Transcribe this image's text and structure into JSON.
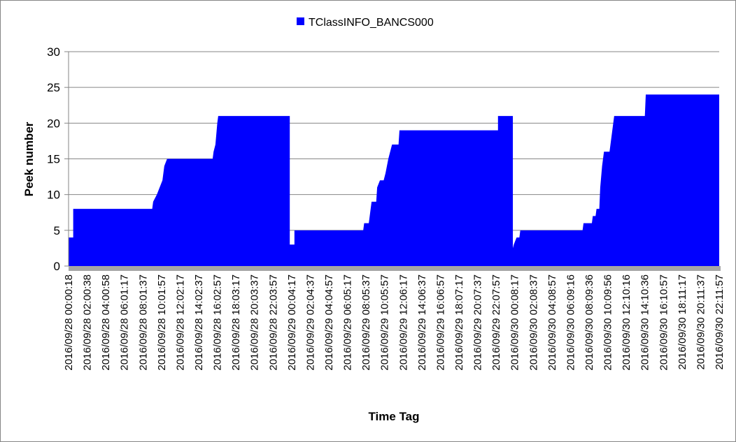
{
  "chart_data": {
    "type": "area",
    "title": "",
    "xlabel": "Time Tag",
    "ylabel": "Peek number",
    "ylim": [
      0,
      30
    ],
    "yticks": [
      0,
      5,
      10,
      15,
      20,
      25,
      30
    ],
    "legend_position": "top-center",
    "grid": "horizontal",
    "colors": {
      "series": "#0000FF",
      "floor": "#A6A6A6",
      "grid": "#868686"
    },
    "x_tick_labels": [
      "2016/09/28 00:00:18",
      "2016/09/28 02:00:38",
      "2016/09/28 04:00:58",
      "2016/09/28 06:01:17",
      "2016/09/28 08:01:37",
      "2016/09/28 10:01:57",
      "2016/09/28 12:02:17",
      "2016/09/28 14:02:37",
      "2016/09/28 16:02:57",
      "2016/09/28 18:03:17",
      "2016/09/28 20:03:37",
      "2016/09/28 22:03:57",
      "2016/09/29 00:04:17",
      "2016/09/29 02:04:37",
      "2016/09/29 04:04:57",
      "2016/09/29 06:05:17",
      "2016/09/29 08:05:37",
      "2016/09/29 10:05:57",
      "2016/09/29 12:06:17",
      "2016/09/29 14:06:37",
      "2016/09/29 16:06:57",
      "2016/09/29 18:07:17",
      "2016/09/29 20:07:37",
      "2016/09/29 22:07:57",
      "2016/09/30 00:08:17",
      "2016/09/30 02:08:37",
      "2016/09/30 04:08:57",
      "2016/09/30 06:09:16",
      "2016/09/30 08:09:36",
      "2016/09/30 10:09:56",
      "2016/09/30 12:10:16",
      "2016/09/30 14:10:36",
      "2016/09/30 16:10:57",
      "2016/09/30 18:11:17",
      "2016/09/30 20:11:37",
      "2016/09/30 22:11:57"
    ],
    "series": [
      {
        "name": "TClassINFO_BANCS000",
        "points": [
          [
            0.0,
            0
          ],
          [
            0.0,
            4
          ],
          [
            0.25,
            4
          ],
          [
            0.25,
            8
          ],
          [
            4.5,
            8
          ],
          [
            4.55,
            9
          ],
          [
            4.75,
            10
          ],
          [
            4.9,
            11
          ],
          [
            5.05,
            12
          ],
          [
            5.15,
            14
          ],
          [
            5.3,
            15
          ],
          [
            7.75,
            15
          ],
          [
            7.8,
            16
          ],
          [
            7.9,
            17
          ],
          [
            8.0,
            20
          ],
          [
            8.05,
            21
          ],
          [
            11.9,
            21
          ],
          [
            11.9,
            3
          ],
          [
            12.15,
            3
          ],
          [
            12.15,
            5
          ],
          [
            15.85,
            5
          ],
          [
            15.9,
            6
          ],
          [
            16.15,
            6
          ],
          [
            16.2,
            7
          ],
          [
            16.3,
            9
          ],
          [
            16.55,
            9
          ],
          [
            16.6,
            11
          ],
          [
            16.75,
            12
          ],
          [
            16.95,
            12
          ],
          [
            17.05,
            13
          ],
          [
            17.2,
            15
          ],
          [
            17.4,
            17
          ],
          [
            17.75,
            17
          ],
          [
            17.8,
            19
          ],
          [
            23.1,
            19
          ],
          [
            23.1,
            21
          ],
          [
            23.9,
            21
          ],
          [
            23.9,
            2.5
          ],
          [
            23.95,
            3
          ],
          [
            24.1,
            4
          ],
          [
            24.25,
            4
          ],
          [
            24.3,
            5
          ],
          [
            27.65,
            5
          ],
          [
            27.7,
            6
          ],
          [
            28.15,
            6
          ],
          [
            28.2,
            7
          ],
          [
            28.35,
            7
          ],
          [
            28.4,
            8
          ],
          [
            28.55,
            8
          ],
          [
            28.6,
            11
          ],
          [
            28.7,
            14
          ],
          [
            28.8,
            16
          ],
          [
            29.1,
            16
          ],
          [
            29.15,
            17
          ],
          [
            29.25,
            19
          ],
          [
            29.35,
            21
          ],
          [
            31.0,
            21
          ],
          [
            31.05,
            24
          ],
          [
            35.0,
            24
          ],
          [
            35.0,
            0
          ]
        ]
      }
    ]
  }
}
